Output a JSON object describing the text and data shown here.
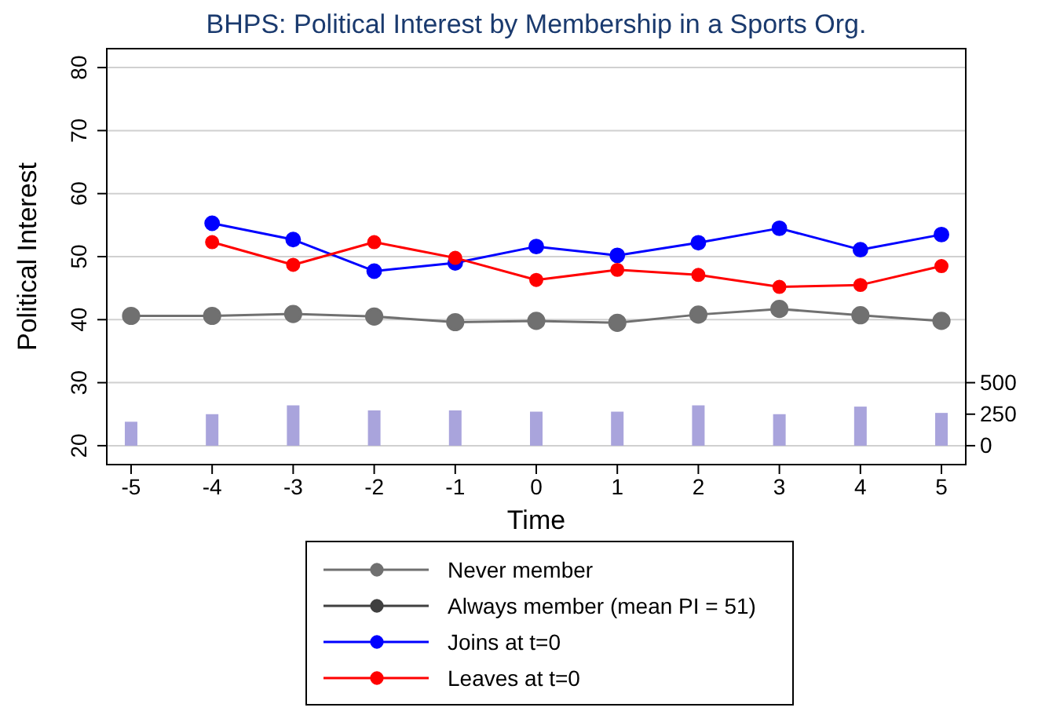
{
  "chart_data": {
    "type": "line",
    "title": "BHPS: Political Interest by Membership in a Sports Org.",
    "xlabel": "Time",
    "ylabel": "Political Interest",
    "x": [
      -5,
      -4,
      -3,
      -2,
      -1,
      0,
      1,
      2,
      3,
      4,
      5
    ],
    "xlim": [
      -5.3,
      5.3
    ],
    "xticks": [
      -5,
      -4,
      -3,
      -2,
      -1,
      0,
      1,
      2,
      3,
      4,
      5
    ],
    "ylim": [
      17,
      83
    ],
    "yticks": [
      20,
      30,
      40,
      50,
      60,
      70,
      80
    ],
    "y2lim": [
      -150,
      3150
    ],
    "y2ticks": [
      0,
      250,
      500
    ],
    "grid": "y",
    "legend": "bottom",
    "marker": "circle",
    "series": [
      {
        "name": "Never member",
        "color": "#707070",
        "values": [
          40.6,
          40.6,
          40.9,
          40.5,
          39.6,
          39.8,
          39.5,
          40.8,
          41.7,
          40.7,
          39.8
        ]
      },
      {
        "name": "Always member (mean PI = 51)",
        "color": "#404040",
        "values": [
          null,
          null,
          null,
          null,
          null,
          null,
          null,
          null,
          null,
          null,
          null
        ]
      },
      {
        "name": "Joins at t=0",
        "color": "#0000ff",
        "values": [
          null,
          55.3,
          52.7,
          47.7,
          49.0,
          51.6,
          50.2,
          52.2,
          54.5,
          51.1,
          53.5
        ]
      },
      {
        "name": "Leaves at t=0",
        "color": "#ff0000",
        "values": [
          null,
          52.3,
          48.7,
          52.3,
          49.8,
          46.3,
          47.9,
          47.1,
          45.2,
          45.5,
          48.5
        ]
      },
      {
        "type": "bar",
        "axis": "y2",
        "color": "#a9a4dc",
        "values": [
          190,
          250,
          320,
          280,
          280,
          270,
          270,
          320,
          250,
          310,
          260
        ]
      }
    ]
  }
}
